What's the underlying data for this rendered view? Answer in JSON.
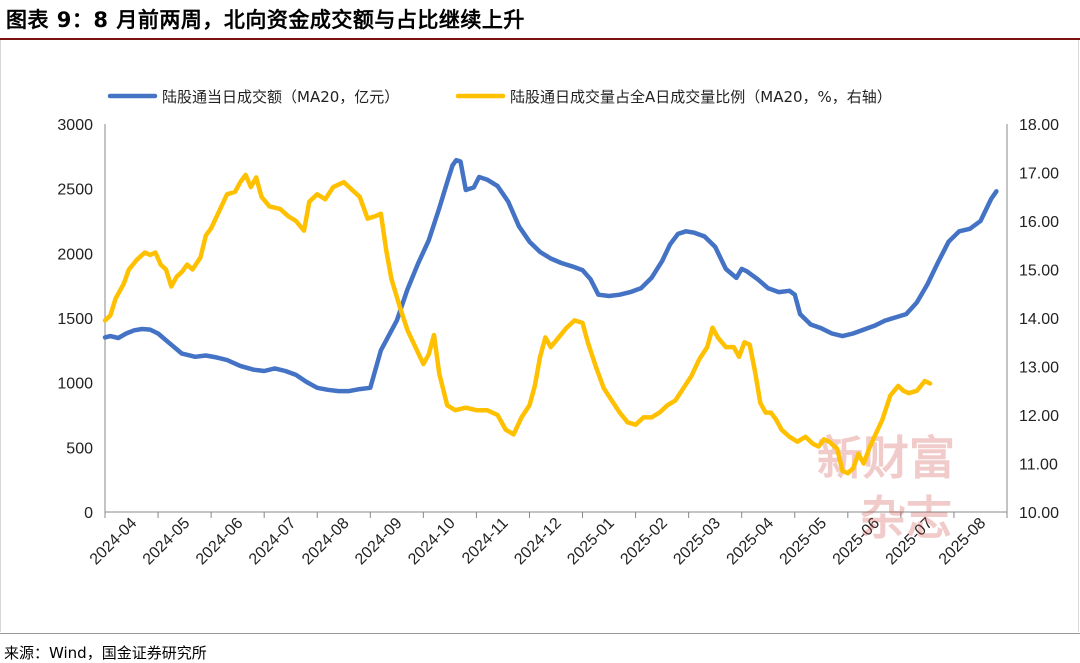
{
  "title": "图表 9：8 月前两周，北向资金成交额与占比继续上升",
  "source": "来源：Wind，国金证券研究所",
  "watermark": {
    "line1": "新财富",
    "line2": "杂志"
  },
  "colors": {
    "blue": "#4472C4",
    "gold": "#FFC000"
  },
  "chart_data": {
    "type": "line",
    "x_tick_labels": [
      "2024-04",
      "2024-05",
      "2024-06",
      "2024-07",
      "2024-08",
      "2024-09",
      "2024-10",
      "2024-11",
      "2024-12",
      "2025-01",
      "2025-02",
      "2025-03",
      "2025-04",
      "2025-05",
      "2025-06",
      "2025-07",
      "2025-08"
    ],
    "ylim_left": [
      0,
      3000
    ],
    "yticks_left": [
      "3000",
      "2500",
      "2000",
      "1500",
      "1000",
      "500",
      "0"
    ],
    "ylim_right": [
      10,
      18
    ],
    "yticks_right": [
      "18.00",
      "17.00",
      "16.00",
      "15.00",
      "14.00",
      "13.00",
      "12.00",
      "11.00",
      "10.00"
    ],
    "legend_position": "top",
    "grid": false,
    "series": [
      {
        "name": "陆股通当日成交额（MA20，亿元）",
        "axis": "left",
        "color": "#4472C4",
        "points": [
          [
            0.0,
            1350
          ],
          [
            0.1,
            1360
          ],
          [
            0.25,
            1345
          ],
          [
            0.4,
            1380
          ],
          [
            0.55,
            1405
          ],
          [
            0.7,
            1415
          ],
          [
            0.85,
            1410
          ],
          [
            1.0,
            1380
          ],
          [
            1.2,
            1310
          ],
          [
            1.45,
            1225
          ],
          [
            1.7,
            1200
          ],
          [
            1.9,
            1210
          ],
          [
            2.1,
            1195
          ],
          [
            2.3,
            1175
          ],
          [
            2.55,
            1130
          ],
          [
            2.8,
            1100
          ],
          [
            3.0,
            1090
          ],
          [
            3.2,
            1110
          ],
          [
            3.4,
            1090
          ],
          [
            3.6,
            1060
          ],
          [
            3.8,
            1005
          ],
          [
            4.0,
            960
          ],
          [
            4.2,
            945
          ],
          [
            4.4,
            935
          ],
          [
            4.6,
            935
          ],
          [
            4.8,
            950
          ],
          [
            5.0,
            960
          ],
          [
            5.2,
            1250
          ],
          [
            5.5,
            1480
          ],
          [
            5.7,
            1720
          ],
          [
            5.9,
            1920
          ],
          [
            6.1,
            2100
          ],
          [
            6.3,
            2350
          ],
          [
            6.45,
            2550
          ],
          [
            6.55,
            2680
          ],
          [
            6.62,
            2720
          ],
          [
            6.7,
            2710
          ],
          [
            6.8,
            2490
          ],
          [
            6.95,
            2510
          ],
          [
            7.05,
            2590
          ],
          [
            7.2,
            2570
          ],
          [
            7.4,
            2520
          ],
          [
            7.6,
            2400
          ],
          [
            7.8,
            2210
          ],
          [
            8.0,
            2090
          ],
          [
            8.2,
            2010
          ],
          [
            8.4,
            1960
          ],
          [
            8.6,
            1925
          ],
          [
            8.8,
            1900
          ],
          [
            9.0,
            1870
          ],
          [
            9.15,
            1800
          ],
          [
            9.3,
            1680
          ],
          [
            9.5,
            1670
          ],
          [
            9.7,
            1680
          ],
          [
            9.9,
            1700
          ],
          [
            10.1,
            1730
          ],
          [
            10.3,
            1810
          ],
          [
            10.5,
            1940
          ],
          [
            10.65,
            2070
          ],
          [
            10.8,
            2150
          ],
          [
            10.95,
            2170
          ],
          [
            11.1,
            2160
          ],
          [
            11.3,
            2130
          ],
          [
            11.5,
            2050
          ],
          [
            11.7,
            1880
          ],
          [
            11.9,
            1810
          ],
          [
            12.0,
            1880
          ],
          [
            12.1,
            1860
          ],
          [
            12.3,
            1800
          ],
          [
            12.5,
            1730
          ],
          [
            12.7,
            1700
          ],
          [
            12.9,
            1710
          ],
          [
            13.0,
            1680
          ],
          [
            13.1,
            1530
          ],
          [
            13.3,
            1450
          ],
          [
            13.5,
            1420
          ],
          [
            13.7,
            1380
          ],
          [
            13.9,
            1360
          ],
          [
            14.1,
            1380
          ],
          [
            14.3,
            1410
          ],
          [
            14.5,
            1440
          ],
          [
            14.7,
            1480
          ],
          [
            14.9,
            1505
          ],
          [
            15.1,
            1530
          ],
          [
            15.3,
            1620
          ],
          [
            15.5,
            1760
          ],
          [
            15.7,
            1930
          ],
          [
            15.9,
            2090
          ],
          [
            16.1,
            2170
          ],
          [
            16.3,
            2190
          ],
          [
            16.5,
            2250
          ],
          [
            16.7,
            2420
          ],
          [
            16.8,
            2480
          ]
        ]
      },
      {
        "name": "陆股通日成交量占全A日成交量比例（MA20，%，右轴）",
        "axis": "right",
        "color": "#FFC000",
        "points": [
          [
            0.0,
            13.95
          ],
          [
            0.1,
            14.05
          ],
          [
            0.2,
            14.4
          ],
          [
            0.35,
            14.7
          ],
          [
            0.45,
            15.0
          ],
          [
            0.6,
            15.2
          ],
          [
            0.75,
            15.35
          ],
          [
            0.85,
            15.3
          ],
          [
            0.95,
            15.35
          ],
          [
            1.05,
            15.1
          ],
          [
            1.15,
            15.0
          ],
          [
            1.25,
            14.65
          ],
          [
            1.35,
            14.85
          ],
          [
            1.45,
            14.95
          ],
          [
            1.55,
            15.1
          ],
          [
            1.65,
            15.0
          ],
          [
            1.8,
            15.25
          ],
          [
            1.9,
            15.7
          ],
          [
            2.0,
            15.85
          ],
          [
            2.15,
            16.2
          ],
          [
            2.3,
            16.55
          ],
          [
            2.45,
            16.6
          ],
          [
            2.55,
            16.8
          ],
          [
            2.65,
            16.95
          ],
          [
            2.75,
            16.7
          ],
          [
            2.85,
            16.9
          ],
          [
            2.95,
            16.5
          ],
          [
            3.1,
            16.3
          ],
          [
            3.3,
            16.25
          ],
          [
            3.45,
            16.1
          ],
          [
            3.6,
            16.0
          ],
          [
            3.75,
            15.8
          ],
          [
            3.85,
            16.4
          ],
          [
            4.0,
            16.55
          ],
          [
            4.15,
            16.45
          ],
          [
            4.3,
            16.7
          ],
          [
            4.5,
            16.8
          ],
          [
            4.6,
            16.7
          ],
          [
            4.8,
            16.5
          ],
          [
            4.95,
            16.05
          ],
          [
            5.1,
            16.1
          ],
          [
            5.2,
            16.15
          ],
          [
            5.3,
            15.4
          ],
          [
            5.4,
            14.8
          ],
          [
            5.55,
            14.25
          ],
          [
            5.7,
            13.75
          ],
          [
            5.85,
            13.4
          ],
          [
            6.0,
            13.05
          ],
          [
            6.1,
            13.25
          ],
          [
            6.2,
            13.65
          ],
          [
            6.3,
            12.85
          ],
          [
            6.45,
            12.2
          ],
          [
            6.6,
            12.1
          ],
          [
            6.8,
            12.15
          ],
          [
            7.0,
            12.1
          ],
          [
            7.2,
            12.1
          ],
          [
            7.4,
            12.0
          ],
          [
            7.55,
            11.7
          ],
          [
            7.7,
            11.6
          ],
          [
            7.85,
            11.95
          ],
          [
            8.0,
            12.2
          ],
          [
            8.1,
            12.6
          ],
          [
            8.2,
            13.2
          ],
          [
            8.3,
            13.6
          ],
          [
            8.4,
            13.4
          ],
          [
            8.55,
            13.6
          ],
          [
            8.7,
            13.8
          ],
          [
            8.85,
            13.95
          ],
          [
            9.0,
            13.9
          ],
          [
            9.1,
            13.5
          ],
          [
            9.25,
            13.0
          ],
          [
            9.4,
            12.55
          ],
          [
            9.55,
            12.3
          ],
          [
            9.7,
            12.05
          ],
          [
            9.85,
            11.85
          ],
          [
            10.0,
            11.8
          ],
          [
            10.15,
            11.95
          ],
          [
            10.3,
            11.95
          ],
          [
            10.45,
            12.05
          ],
          [
            10.6,
            12.2
          ],
          [
            10.75,
            12.3
          ],
          [
            10.9,
            12.55
          ],
          [
            11.05,
            12.8
          ],
          [
            11.2,
            13.15
          ],
          [
            11.35,
            13.4
          ],
          [
            11.45,
            13.8
          ],
          [
            11.55,
            13.6
          ],
          [
            11.7,
            13.4
          ],
          [
            11.85,
            13.4
          ],
          [
            11.95,
            13.2
          ],
          [
            12.05,
            13.5
          ],
          [
            12.15,
            13.45
          ],
          [
            12.25,
            12.9
          ],
          [
            12.35,
            12.25
          ],
          [
            12.45,
            12.05
          ],
          [
            12.55,
            12.05
          ],
          [
            12.65,
            11.9
          ],
          [
            12.75,
            11.7
          ],
          [
            12.9,
            11.55
          ],
          [
            13.05,
            11.45
          ],
          [
            13.2,
            11.55
          ],
          [
            13.35,
            11.4
          ],
          [
            13.45,
            11.35
          ],
          [
            13.55,
            11.5
          ],
          [
            13.65,
            11.45
          ],
          [
            13.8,
            11.3
          ],
          [
            13.9,
            10.85
          ],
          [
            14.0,
            10.8
          ],
          [
            14.1,
            10.9
          ],
          [
            14.2,
            11.2
          ],
          [
            14.3,
            11.0
          ],
          [
            14.4,
            11.3
          ],
          [
            14.5,
            11.55
          ],
          [
            14.65,
            11.9
          ],
          [
            14.8,
            12.4
          ],
          [
            14.95,
            12.6
          ],
          [
            15.05,
            12.5
          ],
          [
            15.15,
            12.45
          ],
          [
            15.3,
            12.5
          ],
          [
            15.45,
            12.7
          ],
          [
            15.55,
            12.65
          ]
        ]
      }
    ]
  }
}
